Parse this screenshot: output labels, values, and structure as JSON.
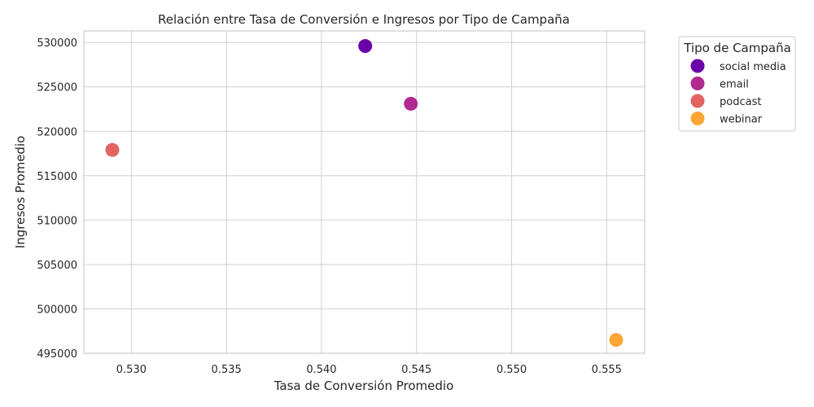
{
  "chart_data": {
    "type": "scatter",
    "title": "Relación entre Tasa de Conversión e Ingresos por Tipo de Campaña",
    "xlabel": "Tasa de Conversión Promedio",
    "ylabel": "Ingresos Promedio",
    "xlim": [
      0.5275,
      0.557
    ],
    "ylim": [
      495000,
      531300
    ],
    "x_ticks": [
      0.53,
      0.535,
      0.54,
      0.545,
      0.55,
      0.555
    ],
    "x_tick_labels": [
      "0.530",
      "0.535",
      "0.540",
      "0.545",
      "0.550",
      "0.555"
    ],
    "y_ticks": [
      495000,
      500000,
      505000,
      510000,
      515000,
      520000,
      525000,
      530000
    ],
    "y_tick_labels": [
      "495000",
      "500000",
      "505000",
      "510000",
      "515000",
      "520000",
      "525000",
      "530000"
    ],
    "grid": true,
    "legend_title": "Tipo de Campaña",
    "legend_position": "outside-top-right",
    "series": [
      {
        "name": "social media",
        "color": "#6a00a8",
        "x": [
          0.5423
        ],
        "y": [
          529600
        ]
      },
      {
        "name": "email",
        "color": "#b12a90",
        "x": [
          0.5447
        ],
        "y": [
          523100
        ]
      },
      {
        "name": "podcast",
        "color": "#e16462",
        "x": [
          0.529
        ],
        "y": [
          517900
        ]
      },
      {
        "name": "webinar",
        "color": "#fca636",
        "x": [
          0.5555
        ],
        "y": [
          496500
        ]
      }
    ]
  }
}
